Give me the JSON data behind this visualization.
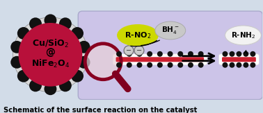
{
  "bg_color": "#d2dce8",
  "panel_color": "#ccc4e8",
  "panel_border_color": "#aaaacc",
  "gear_inner_color": "#b8103a",
  "gear_ring_color": "#d8d8d8",
  "gear_tooth_color": "#111111",
  "mag_glass_color": "#e8d0d8",
  "mag_border_color": "#880020",
  "mag_handle_color": "#800020",
  "rno2_color": "#ccd800",
  "bh4_color": "#c8c8c8",
  "rnh2_color": "#f2f2f2",
  "rod_white": "#f0f0f0",
  "rod_red": "#cc2030",
  "dot_color": "#111111",
  "caption": "Schematic of the surface reaction on the catalyst",
  "caption_fontsize": 7.2
}
